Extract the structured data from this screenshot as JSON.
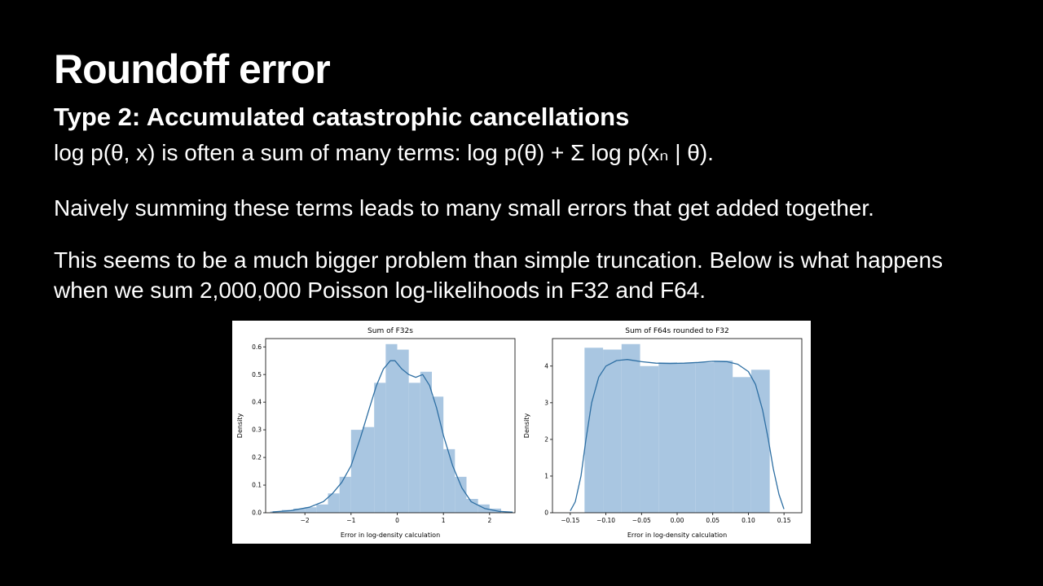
{
  "slide": {
    "title": "Roundoff error",
    "subtitle": "Type 2: Accumulated catastrophic cancellations",
    "line1": "log p(θ, x) is often a sum of many terms: log p(θ) + Σ log p(xₙ | θ).",
    "para2": "Naively summing these terms leads to many small errors that get added together.",
    "para3": "This seems to be a much bigger problem than simple truncation. Below is what happens when we sum 2,000,000 Poisson log-likelihoods in F32 and F64."
  },
  "chart_data": [
    {
      "type": "bar",
      "subtype": "histogram+kde",
      "title": "Sum of F32s",
      "xlabel": "Error in log-density calculation",
      "ylabel": "Density",
      "xlim": [
        -2.85,
        2.55
      ],
      "ylim": [
        0,
        0.63
      ],
      "bar_color": "#a9c6e1",
      "line_color": "#2e6fa3",
      "xticks": [
        {
          "v": -2,
          "label": "−2"
        },
        {
          "v": -1,
          "label": "−1"
        },
        {
          "v": 0,
          "label": "0"
        },
        {
          "v": 1,
          "label": "1"
        },
        {
          "v": 2,
          "label": "2"
        }
      ],
      "yticks": [
        {
          "v": 0.0,
          "label": "0.0"
        },
        {
          "v": 0.1,
          "label": "0.1"
        },
        {
          "v": 0.2,
          "label": "0.2"
        },
        {
          "v": 0.3,
          "label": "0.3"
        },
        {
          "v": 0.4,
          "label": "0.4"
        },
        {
          "v": 0.5,
          "label": "0.5"
        },
        {
          "v": 0.6,
          "label": "0.6"
        }
      ],
      "bins": {
        "start": -2.75,
        "width": 0.25
      },
      "values": [
        0.005,
        0.01,
        0.015,
        0.02,
        0.03,
        0.07,
        0.13,
        0.3,
        0.31,
        0.47,
        0.61,
        0.59,
        0.47,
        0.51,
        0.42,
        0.23,
        0.13,
        0.05,
        0.03,
        0.015
      ],
      "kde": {
        "x": [
          -2.7,
          -2.3,
          -1.9,
          -1.6,
          -1.4,
          -1.2,
          -1.0,
          -0.8,
          -0.6,
          -0.45,
          -0.3,
          -0.15,
          -0.05,
          0.1,
          0.25,
          0.4,
          0.55,
          0.7,
          0.85,
          1.0,
          1.2,
          1.4,
          1.6,
          1.9,
          2.2,
          2.5
        ],
        "y": [
          0.003,
          0.008,
          0.02,
          0.04,
          0.07,
          0.11,
          0.17,
          0.27,
          0.38,
          0.46,
          0.52,
          0.55,
          0.55,
          0.52,
          0.5,
          0.49,
          0.5,
          0.46,
          0.38,
          0.28,
          0.17,
          0.09,
          0.04,
          0.015,
          0.005,
          0.002
        ]
      }
    },
    {
      "type": "bar",
      "subtype": "histogram+kde",
      "title": "Sum of F64s rounded to F32",
      "xlabel": "Error in log-density calculation",
      "ylabel": "Density",
      "xlim": [
        -0.175,
        0.175
      ],
      "ylim": [
        0,
        4.75
      ],
      "bar_color": "#a9c6e1",
      "line_color": "#2e6fa3",
      "xticks": [
        {
          "v": -0.15,
          "label": "−0.15"
        },
        {
          "v": -0.1,
          "label": "−0.10"
        },
        {
          "v": -0.05,
          "label": "−0.05"
        },
        {
          "v": 0.0,
          "label": "0.00"
        },
        {
          "v": 0.05,
          "label": "0.05"
        },
        {
          "v": 0.1,
          "label": "0.10"
        },
        {
          "v": 0.15,
          "label": "0.15"
        }
      ],
      "yticks": [
        {
          "v": 0,
          "label": "0"
        },
        {
          "v": 1,
          "label": "1"
        },
        {
          "v": 2,
          "label": "2"
        },
        {
          "v": 3,
          "label": "3"
        },
        {
          "v": 4,
          "label": "4"
        }
      ],
      "bins": {
        "start": -0.13,
        "width": 0.026
      },
      "values": [
        4.5,
        4.45,
        4.6,
        4.0,
        4.1,
        4.08,
        4.1,
        4.15,
        3.7,
        3.9
      ],
      "kde": {
        "x": [
          -0.15,
          -0.143,
          -0.135,
          -0.128,
          -0.12,
          -0.11,
          -0.1,
          -0.085,
          -0.07,
          -0.05,
          -0.03,
          -0.01,
          0.01,
          0.03,
          0.05,
          0.07,
          0.085,
          0.1,
          0.11,
          0.12,
          0.128,
          0.135,
          0.143,
          0.15
        ],
        "y": [
          0.05,
          0.3,
          1.0,
          2.0,
          3.0,
          3.7,
          4.0,
          4.15,
          4.18,
          4.12,
          4.08,
          4.07,
          4.08,
          4.1,
          4.13,
          4.12,
          4.05,
          3.85,
          3.5,
          2.8,
          2.0,
          1.2,
          0.5,
          0.1
        ]
      }
    }
  ]
}
